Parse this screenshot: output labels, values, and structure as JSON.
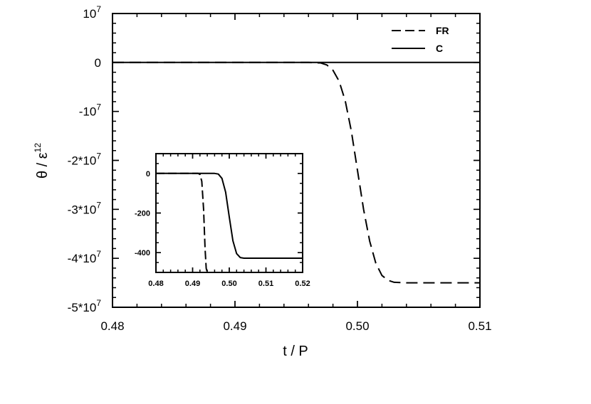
{
  "chart_data": [
    {
      "type": "line",
      "title": "",
      "xlabel": "t / P",
      "ylabel": "θ / ε",
      "ylabel_sup": "12",
      "xlim": [
        0.48,
        0.51
      ],
      "ylim": [
        -50000000,
        10000000
      ],
      "x_ticks": [
        0.48,
        0.49,
        0.5,
        0.51
      ],
      "x_tick_labels": [
        "0.48",
        "0.49",
        "0.50",
        "0.51"
      ],
      "y_ticks": [
        {
          "value": 10000000,
          "base": "10",
          "sup": "7"
        },
        {
          "value": 0,
          "base": "0",
          "sup": ""
        },
        {
          "value": -10000000,
          "base": "-10",
          "sup": "7"
        },
        {
          "value": -20000000,
          "base": "-2*10",
          "sup": "7"
        },
        {
          "value": -30000000,
          "base": "-3*10",
          "sup": "7"
        },
        {
          "value": -40000000,
          "base": "-4*10",
          "sup": "7"
        },
        {
          "value": -50000000,
          "base": "-5*10",
          "sup": "7"
        }
      ],
      "grid": false,
      "legend_position": "top-right",
      "series": [
        {
          "name": "FR",
          "style": "dashed",
          "x": [
            0.48,
            0.496,
            0.497,
            0.4975,
            0.498,
            0.4985,
            0.499,
            0.4995,
            0.5,
            0.5005,
            0.501,
            0.5015,
            0.502,
            0.5025,
            0.503,
            0.504,
            0.51
          ],
          "y": [
            0,
            0,
            -100000,
            -500000,
            -1600000,
            -3800000,
            -7800000,
            -14000000,
            -22000000,
            -30000000,
            -36500000,
            -41000000,
            -43500000,
            -44500000,
            -44900000,
            -45000000,
            -45000000
          ]
        },
        {
          "name": "C",
          "style": "solid",
          "x": [
            0.48,
            0.51
          ],
          "y": [
            0,
            0
          ]
        }
      ]
    },
    {
      "type": "line",
      "title": "",
      "xlabel": "",
      "ylabel": "",
      "xlim": [
        0.48,
        0.52
      ],
      "ylim": [
        -500,
        100
      ],
      "x_ticks": [
        0.48,
        0.49,
        0.5,
        0.51,
        0.52
      ],
      "x_tick_labels": [
        "0.48",
        "0.49",
        "0.50",
        "0.51",
        "0.52"
      ],
      "y_ticks": [
        0,
        -200,
        -400
      ],
      "y_tick_labels": [
        "0",
        "-200",
        "-400"
      ],
      "grid": false,
      "series": [
        {
          "name": "FR",
          "style": "dashed",
          "x": [
            0.48,
            0.4915,
            0.492,
            0.4925,
            0.493,
            0.4934,
            0.4937,
            0.494
          ],
          "y": [
            0,
            0,
            -5,
            -40,
            -180,
            -380,
            -480,
            -500
          ]
        },
        {
          "name": "C",
          "style": "solid",
          "x": [
            0.48,
            0.496,
            0.497,
            0.498,
            0.499,
            0.5,
            0.501,
            0.502,
            0.503,
            0.504,
            0.52
          ],
          "y": [
            0,
            0,
            -3,
            -25,
            -95,
            -220,
            -340,
            -405,
            -425,
            -428,
            -428
          ]
        }
      ]
    }
  ]
}
